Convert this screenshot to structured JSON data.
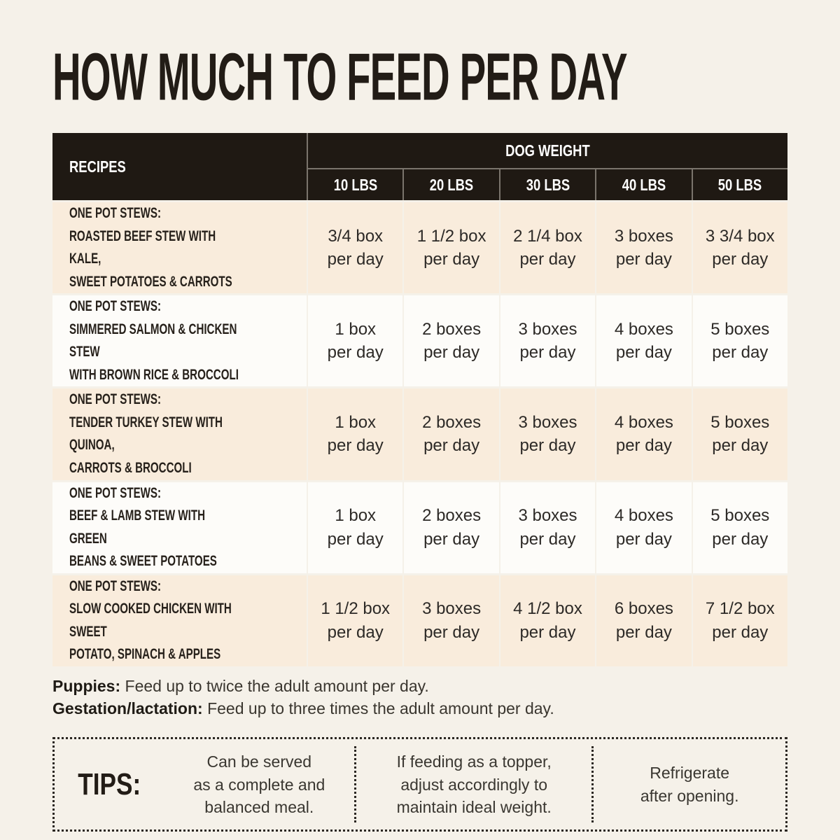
{
  "page": {
    "title": "HOW MUCH TO FEED PER DAY"
  },
  "colors": {
    "page_bg": "#f5f1e9",
    "header_bg": "#1f1913",
    "header_divider": "#7a746c",
    "cream_row_bg": "#f9ecdc",
    "white_row_bg": "#fdfcf9",
    "dark_text": "#221c16",
    "value_text": "#2d2a27"
  },
  "table": {
    "recipes_header": "RECIPES",
    "group_header": "DOG WEIGHT",
    "weight_headers": [
      "10 LBS",
      "20 LBS",
      "30 LBS",
      "40 LBS",
      "50 LBS"
    ],
    "rows": [
      {
        "recipe": "ONE POT STEWS:\nROASTED BEEF STEW WITH KALE,\nSWEET POTATOES & CARROTS",
        "values": [
          "3/4 box\nper day",
          "1 1/2 box\nper day",
          "2 1/4 box\nper day",
          "3 boxes\nper day",
          "3 3/4 box\nper day"
        ]
      },
      {
        "recipe": "ONE POT STEWS:\nSIMMERED SALMON & CHICKEN STEW\nWITH BROWN RICE & BROCCOLI",
        "values": [
          "1 box\nper day",
          "2 boxes\nper day",
          "3 boxes\nper day",
          "4 boxes\nper day",
          "5 boxes\nper day"
        ]
      },
      {
        "recipe": "ONE POT STEWS:\nTENDER TURKEY STEW WITH QUINOA,\nCARROTS & BROCCOLI",
        "values": [
          "1 box\nper day",
          "2 boxes\nper day",
          "3 boxes\nper day",
          "4 boxes\nper day",
          "5 boxes\nper day"
        ]
      },
      {
        "recipe": "ONE POT STEWS:\nBEEF & LAMB STEW WITH GREEN\nBEANS & SWEET POTATOES",
        "values": [
          "1 box\nper day",
          "2 boxes\nper day",
          "3 boxes\nper day",
          "4 boxes\nper day",
          "5 boxes\nper day"
        ]
      },
      {
        "recipe": "ONE POT STEWS:\nSLOW COOKED CHICKEN WITH SWEET\nPOTATO, SPINACH & APPLES",
        "values": [
          "1 1/2 box\nper day",
          "3 boxes\nper day",
          "4 1/2 box\nper day",
          "6 boxes\nper day",
          "7 1/2 box\nper day"
        ]
      }
    ]
  },
  "notes": [
    {
      "label": "Puppies:",
      "text": "Feed up to twice the adult amount per day."
    },
    {
      "label": "Gestation/lactation:",
      "text": "Feed up to three times the adult amount per day."
    }
  ],
  "tips": {
    "label": "TIPS:",
    "items": [
      "Can be served\nas a complete and\nbalanced meal.",
      "If feeding as a topper,\nadjust accordingly to\nmaintain ideal weight.",
      "Refrigerate\nafter opening."
    ]
  },
  "chart_data": {
    "type": "table",
    "title": "HOW MUCH TO FEED PER DAY",
    "column_group": "DOG WEIGHT",
    "columns": [
      "RECIPES",
      "10 LBS",
      "20 LBS",
      "30 LBS",
      "40 LBS",
      "50 LBS"
    ],
    "rows": [
      [
        "ONE POT STEWS: ROASTED BEEF STEW WITH KALE, SWEET POTATOES & CARROTS",
        "3/4 box per day",
        "1 1/2 box per day",
        "2 1/4 box per day",
        "3 boxes per day",
        "3 3/4 box per day"
      ],
      [
        "ONE POT STEWS: SIMMERED SALMON & CHICKEN STEW WITH BROWN RICE & BROCCOLI",
        "1 box per day",
        "2 boxes per day",
        "3 boxes per day",
        "4 boxes per day",
        "5 boxes per day"
      ],
      [
        "ONE POT STEWS: TENDER TURKEY STEW WITH QUINOA, CARROTS & BROCCOLI",
        "1 box per day",
        "2 boxes per day",
        "3 boxes per day",
        "4 boxes per day",
        "5 boxes per day"
      ],
      [
        "ONE POT STEWS: BEEF & LAMB STEW WITH GREEN BEANS & SWEET POTATOES",
        "1 box per day",
        "2 boxes per day",
        "3 boxes per day",
        "4 boxes per day",
        "5 boxes per day"
      ],
      [
        "ONE POT STEWS: SLOW COOKED CHICKEN WITH SWEET POTATO, SPINACH & APPLES",
        "1 1/2 box per day",
        "3 boxes per day",
        "4 1/2 box per day",
        "6 boxes per day",
        "7 1/2 box per day"
      ]
    ],
    "footnotes": [
      "Puppies: Feed up to twice the adult amount per day.",
      "Gestation/lactation: Feed up to three times the adult amount per day.",
      "TIPS: Can be served as a complete and balanced meal. | If feeding as a topper, adjust accordingly to maintain ideal weight. | Refrigerate after opening."
    ]
  }
}
